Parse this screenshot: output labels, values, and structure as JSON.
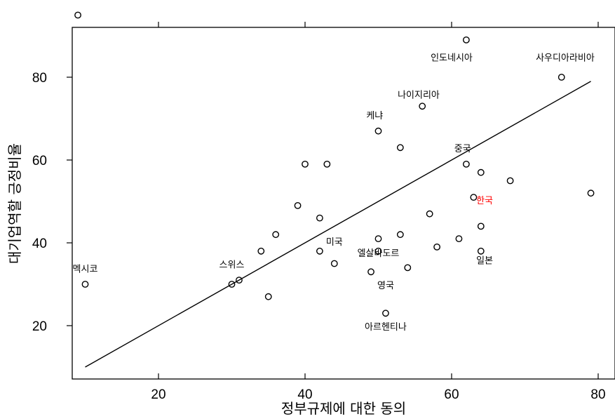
{
  "chart_data": {
    "type": "scatter",
    "xlabel": "정부규제에 대한 동의",
    "ylabel": "대기업역할 긍정비율",
    "xlim": [
      8.5,
      82
    ],
    "ylim": [
      7,
      92
    ],
    "xticks": [
      20,
      40,
      60,
      80
    ],
    "yticks": [
      20,
      40,
      60,
      80
    ],
    "grid": false,
    "regression_line": {
      "x1": 10,
      "y1": 10,
      "x2": 79,
      "y2": 79
    },
    "point_color": "#000000",
    "highlight_color": "#ff0000",
    "points": [
      {
        "x": 9,
        "y": 95
      },
      {
        "x": 10,
        "y": 30
      },
      {
        "x": 30,
        "y": 30
      },
      {
        "x": 31,
        "y": 31
      },
      {
        "x": 34,
        "y": 38
      },
      {
        "x": 35,
        "y": 27
      },
      {
        "x": 36,
        "y": 42
      },
      {
        "x": 39,
        "y": 49
      },
      {
        "x": 40,
        "y": 59
      },
      {
        "x": 42,
        "y": 38
      },
      {
        "x": 42,
        "y": 46
      },
      {
        "x": 43,
        "y": 59
      },
      {
        "x": 44,
        "y": 35
      },
      {
        "x": 49,
        "y": 33
      },
      {
        "x": 50,
        "y": 38
      },
      {
        "x": 50,
        "y": 41
      },
      {
        "x": 50,
        "y": 67
      },
      {
        "x": 51,
        "y": 23
      },
      {
        "x": 53,
        "y": 42
      },
      {
        "x": 53,
        "y": 63
      },
      {
        "x": 54,
        "y": 34
      },
      {
        "x": 56,
        "y": 73
      },
      {
        "x": 57,
        "y": 47
      },
      {
        "x": 58,
        "y": 39
      },
      {
        "x": 61,
        "y": 41
      },
      {
        "x": 62,
        "y": 59
      },
      {
        "x": 62,
        "y": 89
      },
      {
        "x": 63,
        "y": 51
      },
      {
        "x": 64,
        "y": 38
      },
      {
        "x": 64,
        "y": 44
      },
      {
        "x": 64,
        "y": 57
      },
      {
        "x": 68,
        "y": 55
      },
      {
        "x": 75,
        "y": 80
      },
      {
        "x": 79,
        "y": 52
      }
    ],
    "labels": [
      {
        "text": "멕시코",
        "x": 10,
        "y": 33,
        "color": "#000000"
      },
      {
        "text": "스위스",
        "x": 30,
        "y": 34,
        "color": "#000000"
      },
      {
        "text": "미국",
        "x": 44,
        "y": 39.5,
        "color": "#000000"
      },
      {
        "text": "엘살바도르",
        "x": 50,
        "y": 36.8,
        "color": "#000000"
      },
      {
        "text": "영국",
        "x": 51,
        "y": 29,
        "color": "#000000"
      },
      {
        "text": "아르헨티나",
        "x": 51,
        "y": 19,
        "color": "#000000"
      },
      {
        "text": "케냐",
        "x": 49.5,
        "y": 70,
        "color": "#000000"
      },
      {
        "text": "나이지리아",
        "x": 55.5,
        "y": 75,
        "color": "#000000"
      },
      {
        "text": "인도네시아",
        "x": 60,
        "y": 84,
        "color": "#000000"
      },
      {
        "text": "중국",
        "x": 61.5,
        "y": 62,
        "color": "#000000"
      },
      {
        "text": "한국",
        "x": 64.5,
        "y": 49.5,
        "color": "#ff0000"
      },
      {
        "text": "일본",
        "x": 64.5,
        "y": 35,
        "color": "#000000"
      },
      {
        "text": "사우디아라비아",
        "x": 75.5,
        "y": 84,
        "color": "#000000"
      }
    ]
  }
}
